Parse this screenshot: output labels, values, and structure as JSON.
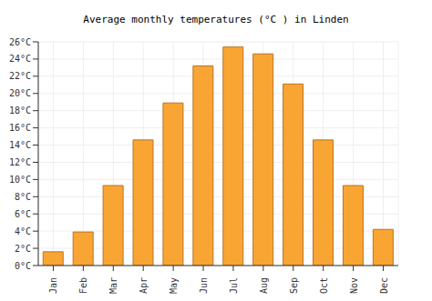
{
  "chart_data": {
    "type": "bar",
    "title": "Average monthly temperatures (°C ) in Linden",
    "categories": [
      "Jan",
      "Feb",
      "Mar",
      "Apr",
      "May",
      "Jun",
      "Jul",
      "Aug",
      "Sep",
      "Oct",
      "Nov",
      "Dec"
    ],
    "values": [
      1.6,
      3.9,
      9.3,
      14.6,
      18.9,
      23.2,
      25.4,
      24.6,
      21.1,
      14.6,
      9.3,
      4.2
    ],
    "color": "#f9a533",
    "ylim": [
      0,
      26
    ],
    "yticks": [
      {
        "value": 0,
        "label": "0°C"
      },
      {
        "value": 2,
        "label": "2°C"
      },
      {
        "value": 4,
        "label": "4°C"
      },
      {
        "value": 6,
        "label": "6°C"
      },
      {
        "value": 8,
        "label": "8°C"
      },
      {
        "value": 10,
        "label": "10°C"
      },
      {
        "value": 12,
        "label": "12°C"
      },
      {
        "value": 14,
        "label": "14°C"
      },
      {
        "value": 16,
        "label": "16°C"
      },
      {
        "value": 18,
        "label": "18°C"
      },
      {
        "value": 20,
        "label": "20°C"
      },
      {
        "value": 22,
        "label": "22°C"
      },
      {
        "value": 24,
        "label": "24°C"
      },
      {
        "value": 26,
        "label": "26°C"
      }
    ],
    "grid": true
  }
}
